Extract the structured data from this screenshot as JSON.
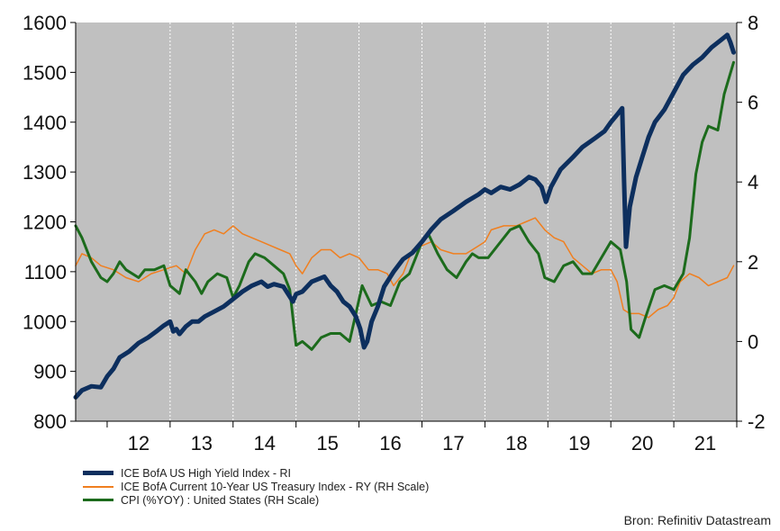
{
  "chart_data": {
    "type": "line",
    "source": "Bron: Refinitiv Datastream",
    "plot_background": "#c0c0c0",
    "x_axis": {
      "range": [
        2011.5,
        2022.0
      ],
      "ticks": [
        "12",
        "13",
        "14",
        "15",
        "16",
        "17",
        "18",
        "19",
        "20",
        "21"
      ]
    },
    "y_left": {
      "range": [
        800,
        1600
      ],
      "ticks": [
        800,
        900,
        1000,
        1100,
        1200,
        1300,
        1400,
        1500,
        1600
      ]
    },
    "y_right": {
      "range": [
        -2,
        8
      ],
      "ticks": [
        -2,
        0,
        2,
        4,
        6,
        8
      ]
    },
    "series": [
      {
        "name": "ICE BofA US High Yield Index - RI",
        "axis": "left",
        "color": "#0d2f5e",
        "width": 5,
        "points": [
          [
            2011.5,
            848
          ],
          [
            2011.6,
            862
          ],
          [
            2011.75,
            870
          ],
          [
            2011.9,
            868
          ],
          [
            2012.0,
            890
          ],
          [
            2012.1,
            905
          ],
          [
            2012.2,
            928
          ],
          [
            2012.35,
            940
          ],
          [
            2012.5,
            957
          ],
          [
            2012.65,
            968
          ],
          [
            2012.8,
            982
          ],
          [
            2012.9,
            992
          ],
          [
            2013.0,
            1000
          ],
          [
            2013.05,
            980
          ],
          [
            2013.1,
            985
          ],
          [
            2013.15,
            975
          ],
          [
            2013.25,
            990
          ],
          [
            2013.35,
            1000
          ],
          [
            2013.45,
            1000
          ],
          [
            2013.55,
            1010
          ],
          [
            2013.7,
            1020
          ],
          [
            2013.85,
            1030
          ],
          [
            2014.0,
            1045
          ],
          [
            2014.15,
            1060
          ],
          [
            2014.3,
            1072
          ],
          [
            2014.45,
            1080
          ],
          [
            2014.55,
            1070
          ],
          [
            2014.65,
            1075
          ],
          [
            2014.8,
            1070
          ],
          [
            2014.95,
            1040
          ],
          [
            2015.0,
            1055
          ],
          [
            2015.1,
            1060
          ],
          [
            2015.25,
            1080
          ],
          [
            2015.35,
            1085
          ],
          [
            2015.45,
            1090
          ],
          [
            2015.55,
            1072
          ],
          [
            2015.65,
            1060
          ],
          [
            2015.75,
            1040
          ],
          [
            2015.85,
            1030
          ],
          [
            2015.95,
            1010
          ],
          [
            2016.02,
            985
          ],
          [
            2016.08,
            948
          ],
          [
            2016.13,
            960
          ],
          [
            2016.2,
            1000
          ],
          [
            2016.3,
            1030
          ],
          [
            2016.4,
            1070
          ],
          [
            2016.55,
            1100
          ],
          [
            2016.7,
            1125
          ],
          [
            2016.85,
            1138
          ],
          [
            2017.0,
            1160
          ],
          [
            2017.15,
            1185
          ],
          [
            2017.3,
            1205
          ],
          [
            2017.5,
            1222
          ],
          [
            2017.7,
            1240
          ],
          [
            2017.9,
            1255
          ],
          [
            2018.0,
            1265
          ],
          [
            2018.1,
            1258
          ],
          [
            2018.25,
            1270
          ],
          [
            2018.4,
            1265
          ],
          [
            2018.55,
            1275
          ],
          [
            2018.7,
            1290
          ],
          [
            2018.8,
            1285
          ],
          [
            2018.9,
            1270
          ],
          [
            2018.97,
            1240
          ],
          [
            2019.05,
            1270
          ],
          [
            2019.2,
            1305
          ],
          [
            2019.4,
            1330
          ],
          [
            2019.55,
            1350
          ],
          [
            2019.75,
            1368
          ],
          [
            2019.9,
            1382
          ],
          [
            2020.0,
            1400
          ],
          [
            2020.1,
            1415
          ],
          [
            2020.18,
            1428
          ],
          [
            2020.21,
            1280
          ],
          [
            2020.24,
            1150
          ],
          [
            2020.3,
            1230
          ],
          [
            2020.4,
            1290
          ],
          [
            2020.5,
            1330
          ],
          [
            2020.6,
            1370
          ],
          [
            2020.7,
            1400
          ],
          [
            2020.85,
            1425
          ],
          [
            2021.0,
            1460
          ],
          [
            2021.15,
            1495
          ],
          [
            2021.3,
            1515
          ],
          [
            2021.45,
            1530
          ],
          [
            2021.6,
            1550
          ],
          [
            2021.75,
            1565
          ],
          [
            2021.85,
            1575
          ],
          [
            2021.9,
            1560
          ],
          [
            2021.95,
            1540
          ]
        ]
      },
      {
        "name": "ICE BofA Current 10-Year US Treasury Index - RY (RH Scale)",
        "axis": "right",
        "color": "#f07f1f",
        "width": 1.5,
        "points": [
          [
            2011.5,
            1.9
          ],
          [
            2011.6,
            2.2
          ],
          [
            2011.75,
            2.1
          ],
          [
            2011.9,
            1.9
          ],
          [
            2012.1,
            1.8
          ],
          [
            2012.3,
            1.6
          ],
          [
            2012.5,
            1.5
          ],
          [
            2012.7,
            1.7
          ],
          [
            2012.9,
            1.8
          ],
          [
            2013.1,
            1.9
          ],
          [
            2013.25,
            1.7
          ],
          [
            2013.4,
            2.3
          ],
          [
            2013.55,
            2.7
          ],
          [
            2013.7,
            2.8
          ],
          [
            2013.85,
            2.7
          ],
          [
            2014.0,
            2.9
          ],
          [
            2014.15,
            2.7
          ],
          [
            2014.3,
            2.6
          ],
          [
            2014.45,
            2.5
          ],
          [
            2014.6,
            2.4
          ],
          [
            2014.75,
            2.3
          ],
          [
            2014.9,
            2.2
          ],
          [
            2015.0,
            1.9
          ],
          [
            2015.1,
            1.7
          ],
          [
            2015.25,
            2.1
          ],
          [
            2015.4,
            2.3
          ],
          [
            2015.55,
            2.3
          ],
          [
            2015.7,
            2.1
          ],
          [
            2015.85,
            2.2
          ],
          [
            2016.0,
            2.1
          ],
          [
            2016.15,
            1.8
          ],
          [
            2016.3,
            1.8
          ],
          [
            2016.45,
            1.7
          ],
          [
            2016.55,
            1.4
          ],
          [
            2016.7,
            1.7
          ],
          [
            2016.85,
            2.3
          ],
          [
            2017.0,
            2.4
          ],
          [
            2017.15,
            2.5
          ],
          [
            2017.3,
            2.3
          ],
          [
            2017.5,
            2.2
          ],
          [
            2017.7,
            2.2
          ],
          [
            2017.9,
            2.4
          ],
          [
            2018.0,
            2.5
          ],
          [
            2018.1,
            2.8
          ],
          [
            2018.3,
            2.9
          ],
          [
            2018.5,
            2.9
          ],
          [
            2018.65,
            3.0
          ],
          [
            2018.8,
            3.1
          ],
          [
            2018.95,
            2.8
          ],
          [
            2019.1,
            2.6
          ],
          [
            2019.25,
            2.5
          ],
          [
            2019.4,
            2.1
          ],
          [
            2019.55,
            1.9
          ],
          [
            2019.7,
            1.7
          ],
          [
            2019.85,
            1.8
          ],
          [
            2020.0,
            1.8
          ],
          [
            2020.1,
            1.5
          ],
          [
            2020.2,
            0.8
          ],
          [
            2020.3,
            0.7
          ],
          [
            2020.45,
            0.7
          ],
          [
            2020.6,
            0.6
          ],
          [
            2020.75,
            0.8
          ],
          [
            2020.9,
            0.9
          ],
          [
            2021.0,
            1.1
          ],
          [
            2021.1,
            1.5
          ],
          [
            2021.25,
            1.7
          ],
          [
            2021.4,
            1.6
          ],
          [
            2021.55,
            1.4
          ],
          [
            2021.7,
            1.5
          ],
          [
            2021.85,
            1.6
          ],
          [
            2021.95,
            1.9
          ]
        ]
      },
      {
        "name": "CPI (%YOY) : United States (RH Scale)",
        "axis": "right",
        "color": "#1c6b1c",
        "width": 3,
        "points": [
          [
            2011.5,
            2.9
          ],
          [
            2011.6,
            2.6
          ],
          [
            2011.75,
            2.0
          ],
          [
            2011.9,
            1.6
          ],
          [
            2012.0,
            1.5
          ],
          [
            2012.1,
            1.7
          ],
          [
            2012.2,
            2.0
          ],
          [
            2012.3,
            1.8
          ],
          [
            2012.5,
            1.6
          ],
          [
            2012.6,
            1.8
          ],
          [
            2012.75,
            1.8
          ],
          [
            2012.9,
            1.9
          ],
          [
            2013.0,
            1.4
          ],
          [
            2013.15,
            1.2
          ],
          [
            2013.25,
            1.8
          ],
          [
            2013.4,
            1.5
          ],
          [
            2013.5,
            1.2
          ],
          [
            2013.6,
            1.5
          ],
          [
            2013.75,
            1.7
          ],
          [
            2013.9,
            1.6
          ],
          [
            2014.0,
            1.1
          ],
          [
            2014.1,
            1.4
          ],
          [
            2014.25,
            2.0
          ],
          [
            2014.35,
            2.2
          ],
          [
            2014.5,
            2.1
          ],
          [
            2014.65,
            1.9
          ],
          [
            2014.8,
            1.7
          ],
          [
            2014.9,
            1.3
          ],
          [
            2015.0,
            -0.1
          ],
          [
            2015.1,
            0.0
          ],
          [
            2015.25,
            -0.2
          ],
          [
            2015.4,
            0.1
          ],
          [
            2015.55,
            0.2
          ],
          [
            2015.7,
            0.2
          ],
          [
            2015.85,
            0.0
          ],
          [
            2015.95,
            0.7
          ],
          [
            2016.05,
            1.4
          ],
          [
            2016.2,
            0.9
          ],
          [
            2016.35,
            1.0
          ],
          [
            2016.5,
            0.9
          ],
          [
            2016.65,
            1.5
          ],
          [
            2016.8,
            1.7
          ],
          [
            2016.9,
            2.1
          ],
          [
            2017.0,
            2.5
          ],
          [
            2017.1,
            2.7
          ],
          [
            2017.25,
            2.2
          ],
          [
            2017.4,
            1.8
          ],
          [
            2017.55,
            1.6
          ],
          [
            2017.7,
            2.0
          ],
          [
            2017.8,
            2.2
          ],
          [
            2017.9,
            2.1
          ],
          [
            2018.05,
            2.1
          ],
          [
            2018.2,
            2.4
          ],
          [
            2018.4,
            2.8
          ],
          [
            2018.55,
            2.9
          ],
          [
            2018.7,
            2.5
          ],
          [
            2018.85,
            2.2
          ],
          [
            2018.95,
            1.6
          ],
          [
            2019.1,
            1.5
          ],
          [
            2019.25,
            1.9
          ],
          [
            2019.4,
            2.0
          ],
          [
            2019.55,
            1.7
          ],
          [
            2019.7,
            1.7
          ],
          [
            2019.85,
            2.1
          ],
          [
            2020.0,
            2.5
          ],
          [
            2020.15,
            2.3
          ],
          [
            2020.25,
            1.5
          ],
          [
            2020.32,
            0.3
          ],
          [
            2020.45,
            0.1
          ],
          [
            2020.55,
            0.6
          ],
          [
            2020.7,
            1.3
          ],
          [
            2020.85,
            1.4
          ],
          [
            2021.0,
            1.3
          ],
          [
            2021.15,
            1.7
          ],
          [
            2021.25,
            2.6
          ],
          [
            2021.35,
            4.2
          ],
          [
            2021.45,
            5.0
          ],
          [
            2021.55,
            5.4
          ],
          [
            2021.7,
            5.3
          ],
          [
            2021.8,
            6.2
          ],
          [
            2021.95,
            7.0
          ]
        ]
      }
    ]
  }
}
